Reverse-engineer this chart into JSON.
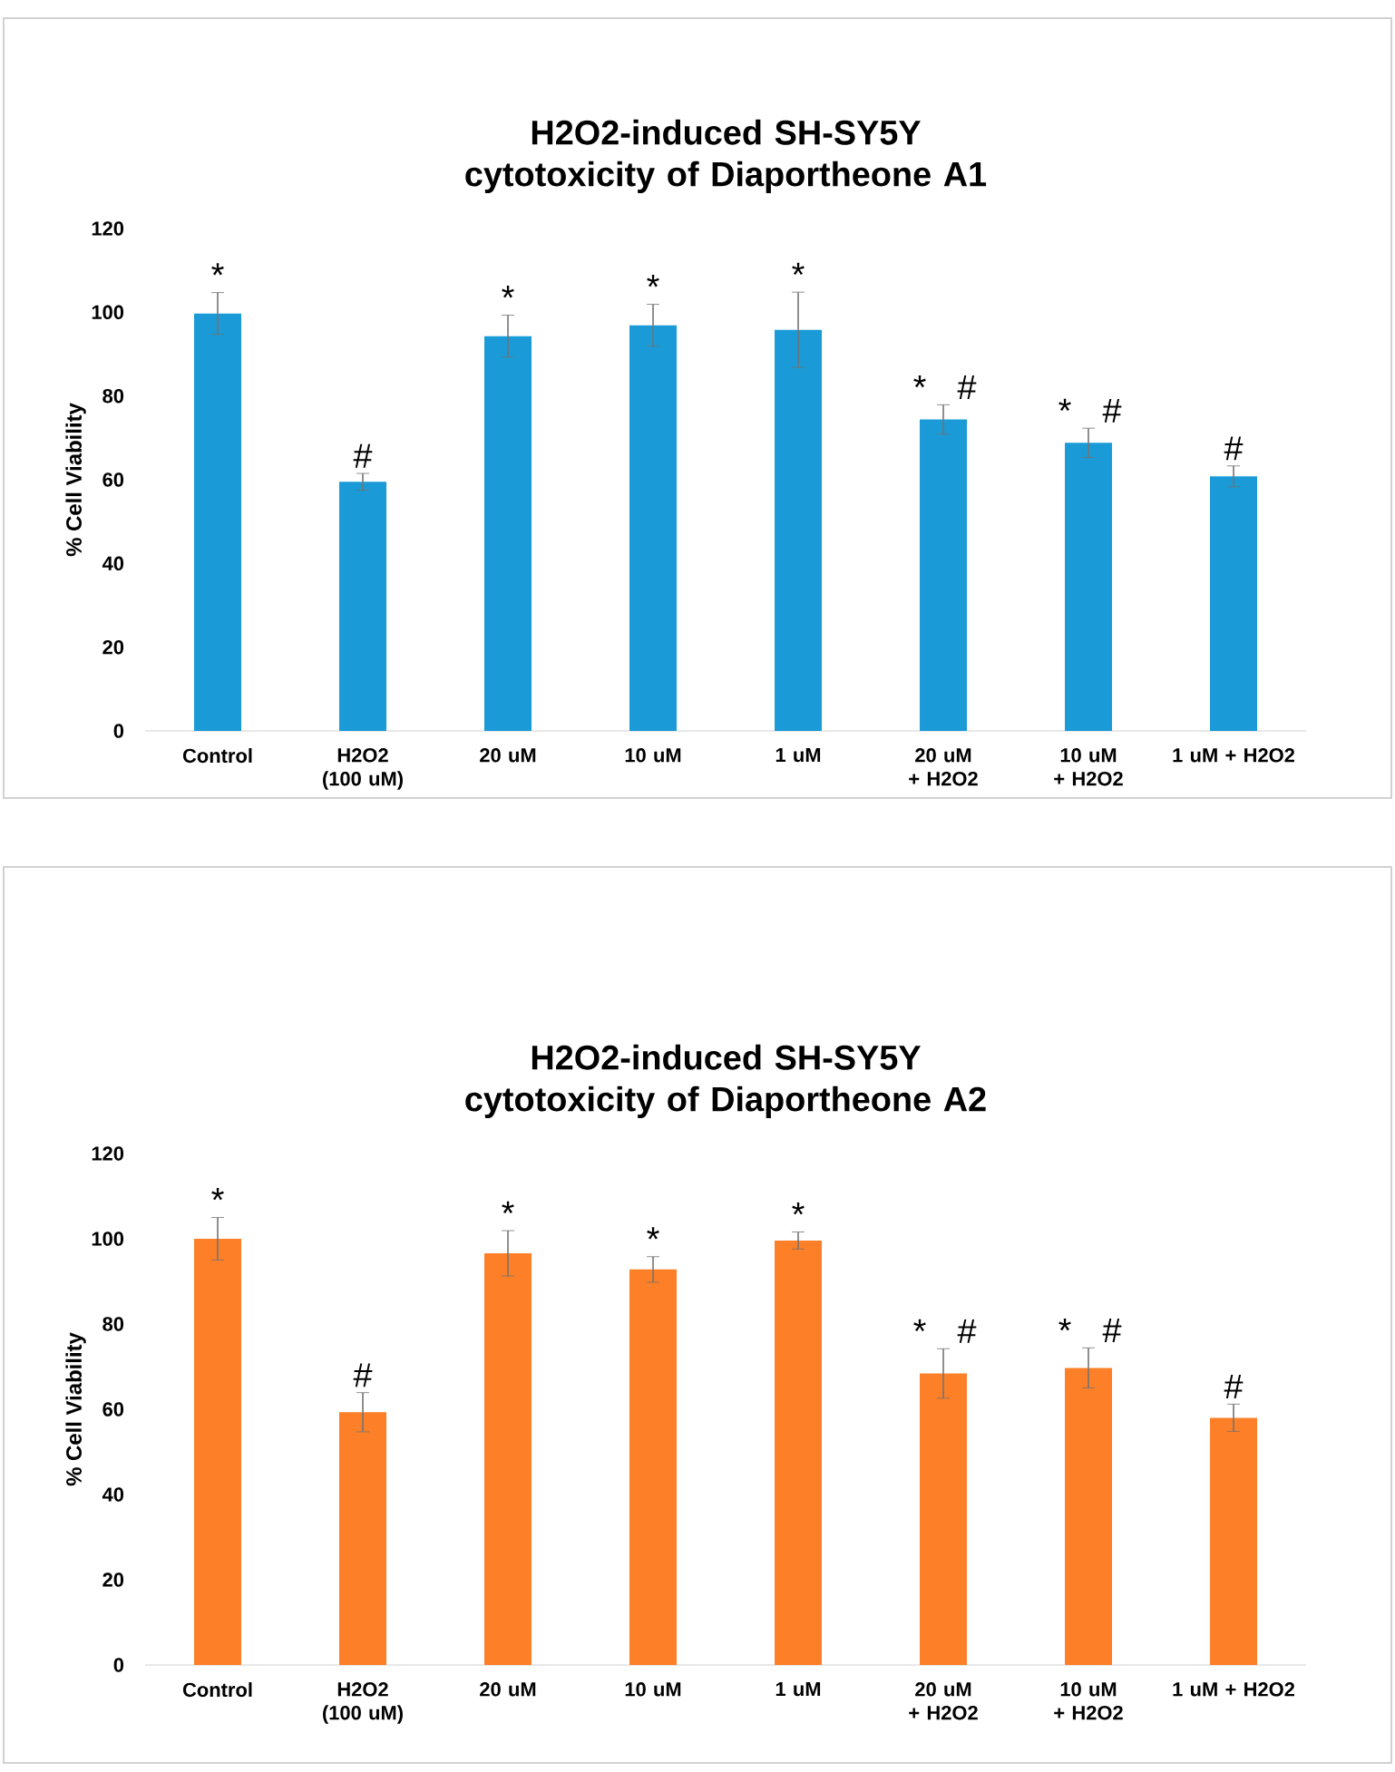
{
  "chart_data": [
    {
      "type": "bar",
      "title": "H2O2-induced SH-SY5Y cytotoxicity of Diaportheone A1",
      "ylabel": "% Cell Viability",
      "categories": [
        "Control",
        "H2O2 (100 uM)",
        "20 uM",
        "10 uM",
        "1 uM",
        "20 uM + H2O2",
        "10 uM + H2O2",
        "1 uM + H2O2"
      ],
      "values": [
        99.7,
        59.5,
        94.3,
        96.9,
        95.8,
        74.4,
        68.8,
        60.8
      ],
      "errors": [
        5,
        2,
        5,
        5,
        9,
        3.5,
        3.5,
        2.5
      ],
      "color": "#1a9bd7",
      "ylim": [
        0,
        120
      ],
      "yticks": [
        0,
        20,
        40,
        60,
        80,
        100,
        120
      ],
      "annotations": [
        {
          "text": "*",
          "x": "Control",
          "y": 99.7
        },
        {
          "text": "#",
          "x": "H2O2 (100 uM)",
          "y": 59.5
        },
        {
          "text": "*",
          "x": "20 uM",
          "y": 94.3
        },
        {
          "text": "*",
          "x": "10 uM",
          "y": 96.9
        },
        {
          "text": "*",
          "x": "1 uM",
          "y": 95.8
        },
        {
          "text": "*",
          "x": "20 uM + H2O2",
          "y": 74.4
        },
        {
          "text": "#",
          "x": "20 uM + H2O2",
          "y": 74.4
        },
        {
          "text": "*",
          "x": "10 uM + H2O2",
          "y": 68.8
        },
        {
          "text": "#",
          "x": "10 uM + H2O2",
          "y": 68.8
        },
        {
          "text": "#",
          "x": "1 uM + H2O2",
          "y": 60.8
        }
      ]
    },
    {
      "type": "bar",
      "title": "H2O2-induced SH-SY5Y cytotoxicity of Diaportheone A2",
      "ylabel": "% Cell Viability",
      "categories": [
        "Control",
        "H2O2 (100 uM)",
        "20 uM",
        "10 uM",
        "1 uM",
        "20 uM + H2O2",
        "10 uM + H2O2",
        "1 uM + H2O2"
      ],
      "values": [
        100,
        59.3,
        96.6,
        92.8,
        99.6,
        68.4,
        69.7,
        58
      ],
      "errors": [
        5,
        4.6,
        5.3,
        3,
        2,
        5.8,
        4.7,
        3.2
      ],
      "color": "#fd7f27",
      "ylim": [
        0,
        120
      ],
      "yticks": [
        0,
        20,
        40,
        60,
        80,
        100,
        120
      ],
      "annotations": [
        {
          "text": "*",
          "x": "Control",
          "y": 100
        },
        {
          "text": "#",
          "x": "H2O2 (100 uM)",
          "y": 59.3
        },
        {
          "text": "*",
          "x": "20 uM",
          "y": 96.6
        },
        {
          "text": "*",
          "x": "10 uM",
          "y": 92.8
        },
        {
          "text": "*",
          "x": "1 uM",
          "y": 99.6
        },
        {
          "text": "*",
          "x": "20 uM + H2O2",
          "y": 68.4
        },
        {
          "text": "#",
          "x": "20 uM + H2O2",
          "y": 68.4
        },
        {
          "text": "*",
          "x": "10 uM + H2O2",
          "y": 69.7
        },
        {
          "text": "#",
          "x": "10 uM + H2O2",
          "y": 69.7
        },
        {
          "text": "#",
          "x": "1 uM + H2O2",
          "y": 58
        }
      ]
    }
  ]
}
